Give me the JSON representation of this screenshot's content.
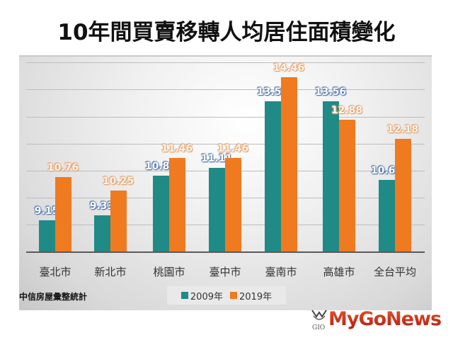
{
  "title": "10年間買賣移轉人均居住面積變化",
  "source": "中信房屋彙整統計",
  "legend": [
    {
      "label": "2009年",
      "color": "#1f8a86"
    },
    {
      "label": "2019年",
      "color": "#f07a1f"
    }
  ],
  "logo": {
    "text": "MyGoNews",
    "mark": "GIO"
  },
  "categories": [
    "臺北市",
    "新北市",
    "桃園市",
    "臺中市",
    "臺南市",
    "高雄市",
    "全台平均"
  ],
  "chart_data": {
    "type": "bar",
    "title": "10年間買賣移轉人均居住面積變化",
    "categories": [
      "臺北市",
      "新北市",
      "桃園市",
      "臺中市",
      "臺南市",
      "高雄市",
      "全台平均"
    ],
    "series": [
      {
        "name": "2009年",
        "color": "#1f8a86",
        "values": [
          9.15,
          9.33,
          10.82,
          11.11,
          13.56,
          13.56,
          10.65
        ]
      },
      {
        "name": "2019年",
        "color": "#f07a1f",
        "values": [
          10.76,
          10.25,
          11.46,
          11.46,
          14.46,
          12.88,
          12.18
        ]
      }
    ],
    "labels": {
      "s0": [
        "9.15",
        "9.33",
        "10.82",
        "11.11",
        "13.56",
        "13.56",
        "10.65"
      ],
      "s1": [
        "10.76",
        "10.25",
        "11.46",
        "11.46",
        "14.46",
        "12.88",
        "12.18"
      ]
    },
    "xlabel": "",
    "ylabel": "",
    "ylim": [
      8,
      15
    ],
    "grid": true,
    "legend_position": "bottom",
    "annotation": "中信房屋彙整統計"
  }
}
